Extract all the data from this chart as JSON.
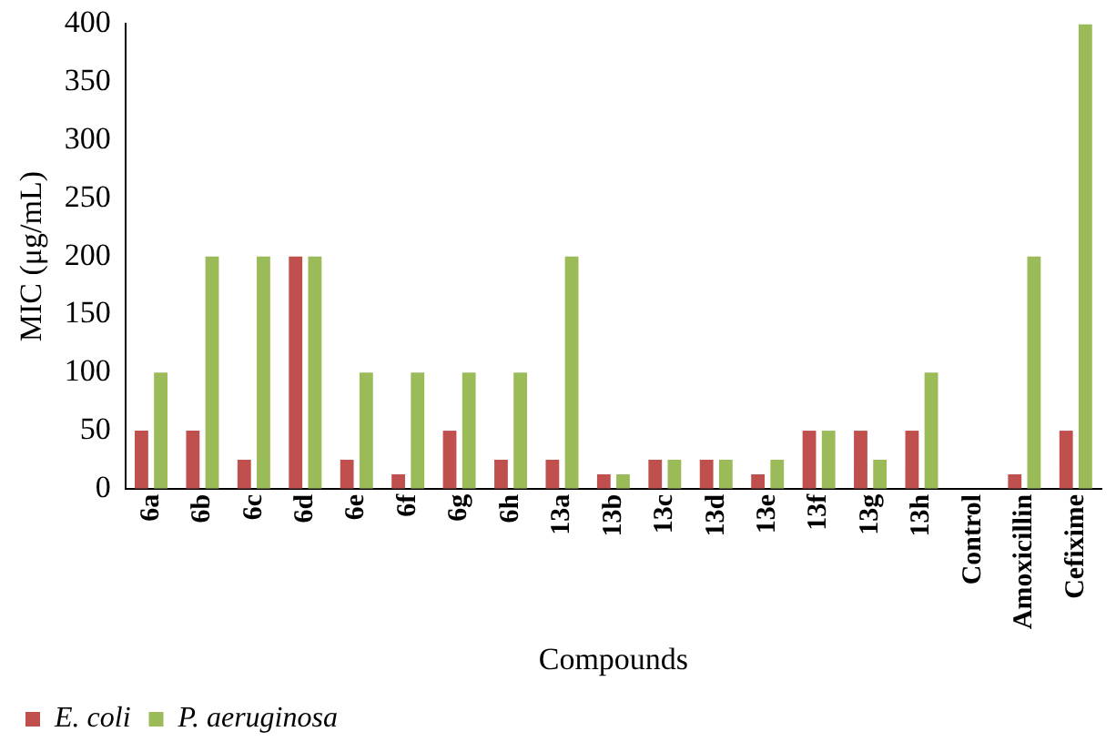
{
  "chart_data": {
    "type": "bar",
    "xlabel": "Compounds",
    "ylabel": "MIC (μg/mL)",
    "categories": [
      "6a",
      "6b",
      "6c",
      "6d",
      "6e",
      "6f",
      "6g",
      "6h",
      "13a",
      "13b",
      "13c",
      "13d",
      "13e",
      "13f",
      "13g",
      "13h",
      "Control",
      "Amoxicillin",
      "Cefixime"
    ],
    "series": [
      {
        "name": "E. coli",
        "color": "#c0504d",
        "values": [
          50,
          50,
          25,
          200,
          25,
          12.5,
          50,
          25,
          25,
          12.5,
          25,
          25,
          12.5,
          50,
          50,
          50,
          null,
          12.5,
          50
        ]
      },
      {
        "name": "P. aeruginosa",
        "color": "#9bbb59",
        "values": [
          100,
          200,
          200,
          200,
          100,
          100,
          100,
          100,
          200,
          12.5,
          25,
          25,
          25,
          50,
          25,
          100,
          null,
          200,
          400
        ]
      }
    ],
    "ylim": [
      0,
      400
    ],
    "yticks": [
      0,
      50,
      100,
      150,
      200,
      250,
      300,
      350,
      400
    ],
    "grid": false,
    "legend": "bottom left"
  }
}
